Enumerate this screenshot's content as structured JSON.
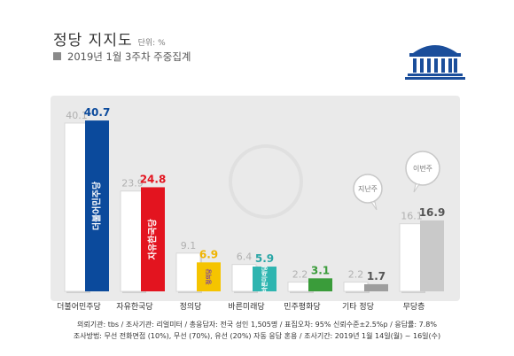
{
  "header": {
    "title": "정당 지지도",
    "unit": "단위: %",
    "subtitle": "2019년 1월 3주차 주중집계"
  },
  "chart_data": {
    "type": "bar",
    "title": "정당 지지도",
    "categories": [
      "더불어민주당",
      "자유한국당",
      "정의당",
      "바른미래당",
      "민주평화당",
      "기타 정당",
      "무당층"
    ],
    "series": [
      {
        "period": "previous",
        "values": [
          40.1,
          23.9,
          9.1,
          6.4,
          2.2,
          2.2,
          16.1
        ]
      },
      {
        "period": "current",
        "values": [
          40.7,
          24.8,
          6.9,
          5.9,
          3.1,
          1.7,
          16.9
        ]
      }
    ],
    "bar_labels": [
      "더불어민주당",
      "자유한국당",
      "정의당",
      "바른미래당",
      "",
      "",
      ""
    ],
    "annotations": [
      "지난주",
      "이번주"
    ],
    "ylim": [
      0,
      45
    ],
    "colors": {
      "previous": "#ffffff",
      "current": [
        "#0b4a9c",
        "#e3141f",
        "#f5c400",
        "#2eb5b0",
        "#3a9c3a",
        "#9e9e9e",
        "#c9c9c9"
      ],
      "value_labels": [
        "#0b4a9c",
        "#e3141f",
        "#f0b400",
        "#2aa6a6",
        "#3a9c3a",
        "#555555",
        "#555555"
      ]
    }
  },
  "footer": {
    "line1": "의뢰기관: tbs / 조사기관: 리얼미터 / 총응답자: 전국 성인 1,505명 / 표집오차: 95% 신뢰수준±2.5%p / 응답률: 7.8%",
    "line2": "조사방법: 무선 전화면접 (10%), 무선 (70%), 유선 (20%) 자동 응답 혼용 / 조사기간: 2019년 1월 14일(월) ~ 16일(수)"
  }
}
